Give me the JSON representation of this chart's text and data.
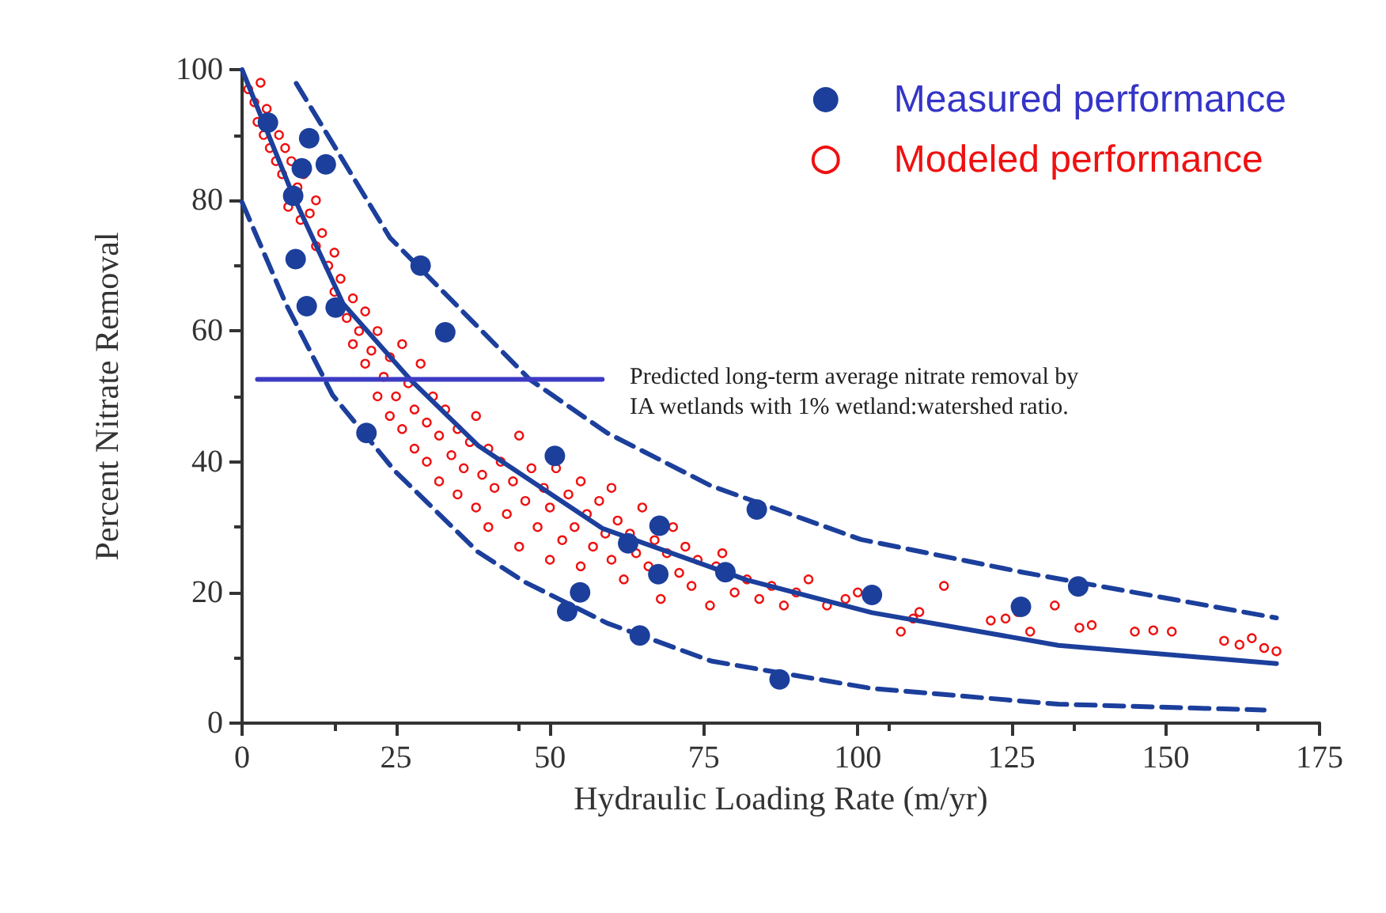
{
  "chart_data": {
    "type": "scatter",
    "xlabel": "Hydraulic Loading Rate (m/yr)",
    "ylabel": "Percent Nitrate Removal",
    "xlim": [
      0,
      175
    ],
    "xticks": [
      0,
      25,
      50,
      75,
      100,
      125,
      150,
      175
    ],
    "ylim": [
      0,
      100
    ],
    "yticks": [
      0,
      20,
      40,
      60,
      80,
      100
    ],
    "grid": false,
    "legend": "top right",
    "annotations": [
      "Predicted long-term average nitrate removal by\nIA wetlands with 1% wetland:watershed ratio."
    ],
    "series": [
      {
        "name": "Measured performance",
        "marker": "circle",
        "color": "#1c3f9c",
        "x": [
          4.2,
          10.9,
          9.7,
          13.6,
          8.3,
          8.7,
          10.5,
          15.2,
          29,
          33,
          20.2,
          50.8,
          54.9,
          52.8,
          67.8,
          62.7,
          67.6,
          78.5,
          64.6,
          83.6,
          87.3,
          102.3,
          126.5,
          135.8
        ],
        "values": [
          91.9,
          89.5,
          84.9,
          85.5,
          80.7,
          71,
          63.8,
          63.6,
          70,
          59.8,
          44.4,
          40.9,
          20,
          17.1,
          30.2,
          27.5,
          22.8,
          23.1,
          13.4,
          32.7,
          6.7,
          19.6,
          17.8,
          20.9
        ]
      },
      {
        "name": "Modeled performance",
        "marker": "circle",
        "color": "#ee1111",
        "x": [
          1,
          2,
          2.5,
          3,
          3.5,
          4,
          4.5,
          5.5,
          6,
          6.5,
          7,
          7.5,
          8,
          9,
          9.5,
          10,
          11,
          12,
          12,
          13,
          14,
          15,
          15,
          16,
          17,
          18,
          18,
          19,
          20,
          20,
          21,
          22,
          22,
          23,
          24,
          24,
          25,
          26,
          26,
          27,
          28,
          28,
          29,
          30,
          30,
          31,
          32,
          32,
          33,
          34,
          35,
          35,
          36,
          37,
          38,
          38,
          39,
          40,
          40,
          41,
          42,
          43,
          44,
          45,
          45,
          46,
          47,
          48,
          49,
          50,
          50,
          51,
          52,
          53,
          54,
          55,
          55,
          56,
          57,
          58,
          59,
          60,
          60,
          61,
          62,
          63,
          64,
          65,
          66,
          67,
          68,
          69,
          70,
          71,
          72,
          73,
          74,
          76,
          77,
          78,
          80,
          82,
          84,
          86,
          88,
          90,
          92,
          95,
          98,
          100,
          107,
          109,
          110,
          114,
          121.6,
          124,
          126,
          128,
          132,
          136,
          138,
          145,
          148,
          151,
          159.5,
          162,
          164,
          166,
          168
        ],
        "values": [
          97,
          95,
          92,
          98,
          90,
          94,
          88,
          86,
          90,
          84,
          88,
          79,
          86,
          82,
          77,
          84,
          78,
          80,
          73,
          75,
          70,
          72,
          66,
          68,
          62,
          65,
          58,
          60,
          63,
          55,
          57,
          50,
          60,
          53,
          56,
          47,
          50,
          45,
          58,
          52,
          42,
          48,
          55,
          40,
          46,
          50,
          37,
          44,
          48,
          41,
          35,
          45,
          39,
          43,
          33,
          47,
          38,
          30,
          42,
          36,
          40,
          32,
          37,
          27,
          44,
          34,
          39,
          30,
          36,
          25,
          33,
          39,
          28,
          35,
          30,
          24,
          37,
          32,
          27,
          34,
          29,
          25,
          36,
          31,
          22,
          29,
          26,
          33,
          24,
          28,
          19,
          26,
          30,
          23,
          27,
          21,
          25,
          18,
          24,
          26,
          20,
          22,
          19,
          21,
          18,
          20,
          22,
          18,
          19,
          20,
          14,
          16,
          17,
          21,
          15.7,
          16,
          17,
          14,
          18,
          14.6,
          15,
          14,
          14.2,
          14,
          12.6,
          12,
          13,
          11.5,
          11
        ]
      },
      {
        "type": "line",
        "marker": "none",
        "line_style": "solid",
        "color": "#1c3f9c",
        "x": [
          0,
          8.3,
          16.4,
          27.3,
          38.3,
          58.5,
          82,
          102.3,
          132.6,
          168
        ],
        "values": [
          100,
          80.7,
          64.2,
          52.6,
          42.5,
          29.8,
          21.9,
          16.9,
          11.9,
          9.1
        ]
      },
      {
        "type": "line",
        "marker": "none",
        "line_style": "dashed",
        "color": "#1c3f9c",
        "x": [
          8.8,
          24,
          46.7,
          59.3,
          76.2,
          100.5,
          126.7,
          168
        ],
        "values": [
          97.9,
          74.3,
          52.6,
          44.4,
          36.3,
          28.1,
          23.1,
          16.1
        ]
      },
      {
        "type": "line",
        "marker": "none",
        "line_style": "dashed",
        "color": "#1c3f9c",
        "x": [
          0,
          7.1,
          14.7,
          24.8,
          38.3,
          45.9,
          59.3,
          76.2,
          102.3,
          132.6,
          166
        ],
        "values": [
          79.7,
          64.2,
          50.2,
          38.6,
          26.2,
          21.6,
          15.3,
          9.5,
          5.3,
          2.9,
          2
        ]
      },
      {
        "type": "line",
        "marker": "none",
        "line_style": "solid",
        "color": "#3b3bc4",
        "x": [
          2.5,
          58.5
        ],
        "values": [
          52.6,
          52.6
        ]
      }
    ]
  }
}
